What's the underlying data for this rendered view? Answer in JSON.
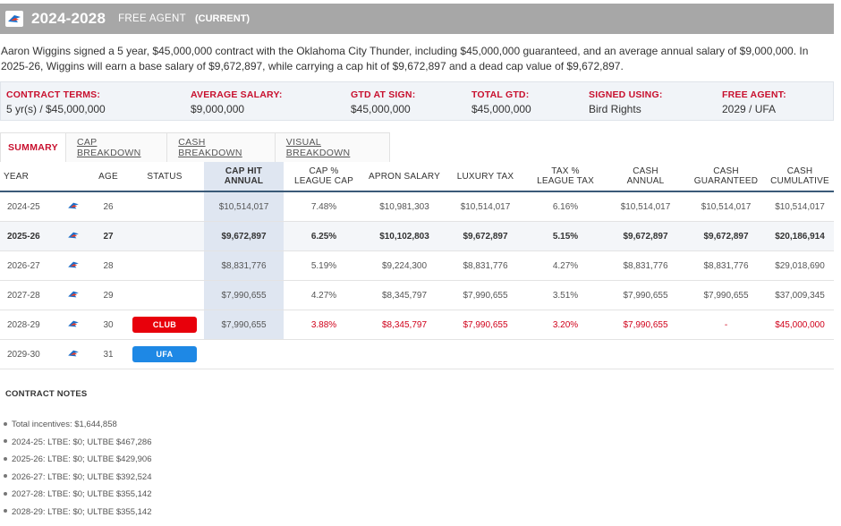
{
  "header": {
    "years": "2024-2028",
    "status": "FREE AGENT",
    "current": "(CURRENT)",
    "logo_icon": "okc-thunder-logo-icon"
  },
  "summary": "Aaron Wiggins signed a 5 year, $45,000,000 contract with the Oklahoma City Thunder, including $45,000,000 guaranteed, and an average annual salary of $9,000,000. In 2025-26, Wiggins will earn a base salary of $9,672,897, while carrying a cap hit of $9,672,897 and a dead cap value of $9,672,897.",
  "terms": [
    {
      "label": "CONTRACT TERMS:",
      "value": "5 yr(s) / $45,000,000"
    },
    {
      "label": "AVERAGE SALARY:",
      "value": "$9,000,000"
    },
    {
      "label": "GTD AT SIGN:",
      "value": "$45,000,000"
    },
    {
      "label": "TOTAL GTD:",
      "value": "$45,000,000"
    },
    {
      "label": "SIGNED USING:",
      "value": "Bird Rights"
    },
    {
      "label": "FREE AGENT:",
      "value": "2029 / UFA"
    }
  ],
  "tabs": [
    "SUMMARY",
    "CAP BREAKDOWN",
    "CASH BREAKDOWN",
    "VISUAL BREAKDOWN"
  ],
  "columns": {
    "year": "YEAR",
    "age": "AGE",
    "status": "STATUS",
    "caphit_1": "CAP HIT",
    "caphit_2": "ANNUAL",
    "cap_pct_1": "CAP %",
    "cap_pct_2": "LEAGUE CAP",
    "apron": "APRON SALARY",
    "luxury": "LUXURY TAX",
    "tax_pct_1": "TAX %",
    "tax_pct_2": "LEAGUE TAX",
    "cash_1": "CASH",
    "cash_2": "ANNUAL",
    "cash_gtd_1": "CASH",
    "cash_gtd_2": "GUARANTEED",
    "cash_cum_1": "CASH",
    "cash_cum_2": "CUMULATIVE"
  },
  "rows": [
    {
      "year": "2024-25",
      "age": "26",
      "status": "",
      "cap_hit": "$10,514,017",
      "cap_pct": "7.48%",
      "apron": "$10,981,303",
      "luxury": "$10,514,017",
      "tax_pct": "6.16%",
      "cash": "$10,514,017",
      "cash_gtd": "$10,514,017",
      "cash_cum": "$10,514,017"
    },
    {
      "year": "2025-26",
      "age": "27",
      "status": "",
      "cap_hit": "$9,672,897",
      "cap_pct": "6.25%",
      "apron": "$10,102,803",
      "luxury": "$9,672,897",
      "tax_pct": "5.15%",
      "cash": "$9,672,897",
      "cash_gtd": "$9,672,897",
      "cash_cum": "$20,186,914"
    },
    {
      "year": "2026-27",
      "age": "28",
      "status": "",
      "cap_hit": "$8,831,776",
      "cap_pct": "5.19%",
      "apron": "$9,224,300",
      "luxury": "$8,831,776",
      "tax_pct": "4.27%",
      "cash": "$8,831,776",
      "cash_gtd": "$8,831,776",
      "cash_cum": "$29,018,690"
    },
    {
      "year": "2027-28",
      "age": "29",
      "status": "",
      "cap_hit": "$7,990,655",
      "cap_pct": "4.27%",
      "apron": "$8,345,797",
      "luxury": "$7,990,655",
      "tax_pct": "3.51%",
      "cash": "$7,990,655",
      "cash_gtd": "$7,990,655",
      "cash_cum": "$37,009,345"
    },
    {
      "year": "2028-29",
      "age": "30",
      "status": "CLUB",
      "cap_hit": "$7,990,655",
      "cap_pct": "3.88%",
      "apron": "$8,345,797",
      "luxury": "$7,990,655",
      "tax_pct": "3.20%",
      "cash": "$7,990,655",
      "cash_gtd": "-",
      "cash_cum": "$45,000,000"
    },
    {
      "year": "2029-30",
      "age": "31",
      "status": "UFA",
      "cap_hit": "",
      "cap_pct": "",
      "apron": "",
      "luxury": "",
      "tax_pct": "",
      "cash": "",
      "cash_gtd": "",
      "cash_cum": ""
    }
  ],
  "notes": {
    "title": "CONTRACT NOTES",
    "items": [
      "Total incentives: $1,644,858",
      "2024-25: LTBE: $0; ULTBE $467,286",
      "2025-26: LTBE: $0; ULTBE $429,906",
      "2026-27: LTBE: $0; ULTBE $392,524",
      "2027-28: LTBE: $0; ULTBE $355,142",
      "2028-29: LTBE: $0; ULTBE $355,142"
    ]
  },
  "colors": {
    "header_bg": "#a7a7a7",
    "accent_red": "#c8102e",
    "club_badge": "#e8000b",
    "ufa_badge": "#1e88e5",
    "caphit_column": "#dfe6f1"
  }
}
